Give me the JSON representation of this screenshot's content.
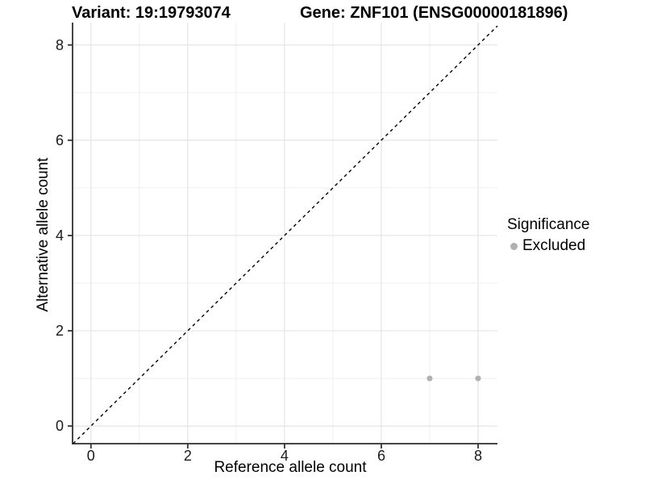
{
  "titles": {
    "variant": "Variant: 19:19793074",
    "gene": "Gene: ZNF101 (ENSG00000181896)"
  },
  "chart_data": {
    "type": "scatter",
    "title": "Variant: 19:19793074  |  Gene: ZNF101 (ENSG00000181896)",
    "xlabel": "Reference allele count",
    "ylabel": "Alternative allele count",
    "xlim": [
      -0.38,
      8.4
    ],
    "ylim": [
      -0.37,
      8.47
    ],
    "xticks": [
      0,
      2,
      4,
      6,
      8
    ],
    "yticks": [
      0,
      2,
      4,
      6,
      8
    ],
    "x_minor_ticks": [
      1,
      3,
      5,
      7
    ],
    "y_minor_ticks": [
      1,
      3,
      5,
      7
    ],
    "grid": true,
    "points": [
      {
        "x": 7,
        "y": 1,
        "series": "Excluded"
      },
      {
        "x": 8,
        "y": 1,
        "series": "Excluded"
      }
    ],
    "identity_line": {
      "equation": "y = x",
      "slope": 1,
      "intercept": 0,
      "linetype": "dashed"
    },
    "legend": {
      "title": "Significance",
      "position": "right",
      "items": [
        {
          "label": "Excluded",
          "color": "#b0b0b0"
        }
      ]
    }
  },
  "colors": {
    "background": "#ffffff",
    "point": "#b0b0b0",
    "grid_major": "#e4e4e4",
    "grid_minor": "#efefef",
    "axis_line": "#464646",
    "tick_mark": "#333333",
    "tick_text": "#1a1a1a",
    "identity_line": "#000000",
    "title_text": "#000000"
  }
}
